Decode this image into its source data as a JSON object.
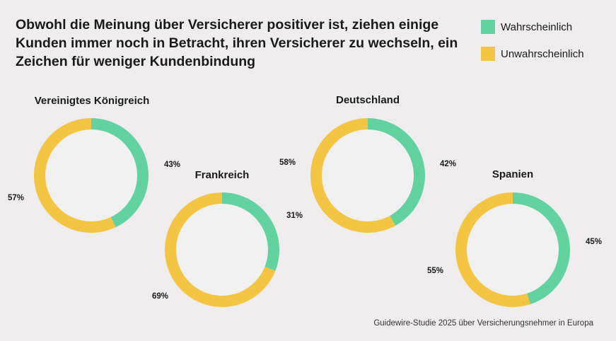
{
  "title": "Obwohl die Meinung über Versicherer positiver ist, ziehen einige Kunden immer noch in Betracht, ihren Versicherer zu wechseln, ein Zeichen für weniger Kundenbindung",
  "legend": [
    {
      "label": "Wahrscheinlich",
      "color": "#63d2a1"
    },
    {
      "label": "Unwahrscheinlich",
      "color": "#f4c542"
    }
  ],
  "source": "Guidewire-Studie 2025 über Versicherungsnehmer in Europa",
  "chart_data": [
    {
      "type": "pie",
      "title": "Vereinigtes Königreich",
      "series": [
        {
          "name": "Wahrscheinlich",
          "value": 43,
          "label": "43%"
        },
        {
          "name": "Unwahrscheinlich",
          "value": 57,
          "label": "57%"
        }
      ]
    },
    {
      "type": "pie",
      "title": "Frankreich",
      "series": [
        {
          "name": "Wahrscheinlich",
          "value": 31,
          "label": "31%"
        },
        {
          "name": "Unwahrscheinlich",
          "value": 69,
          "label": "69%"
        }
      ]
    },
    {
      "type": "pie",
      "title": "Deutschland",
      "series": [
        {
          "name": "Wahrscheinlich",
          "value": 42,
          "label": "42%"
        },
        {
          "name": "Unwahrscheinlich",
          "value": 58,
          "label": "58%"
        }
      ]
    },
    {
      "type": "pie",
      "title": "Spanien",
      "series": [
        {
          "name": "Wahrscheinlich",
          "value": 45,
          "label": "45%"
        },
        {
          "name": "Unwahrscheinlich",
          "value": 55,
          "label": "55%"
        }
      ]
    }
  ]
}
